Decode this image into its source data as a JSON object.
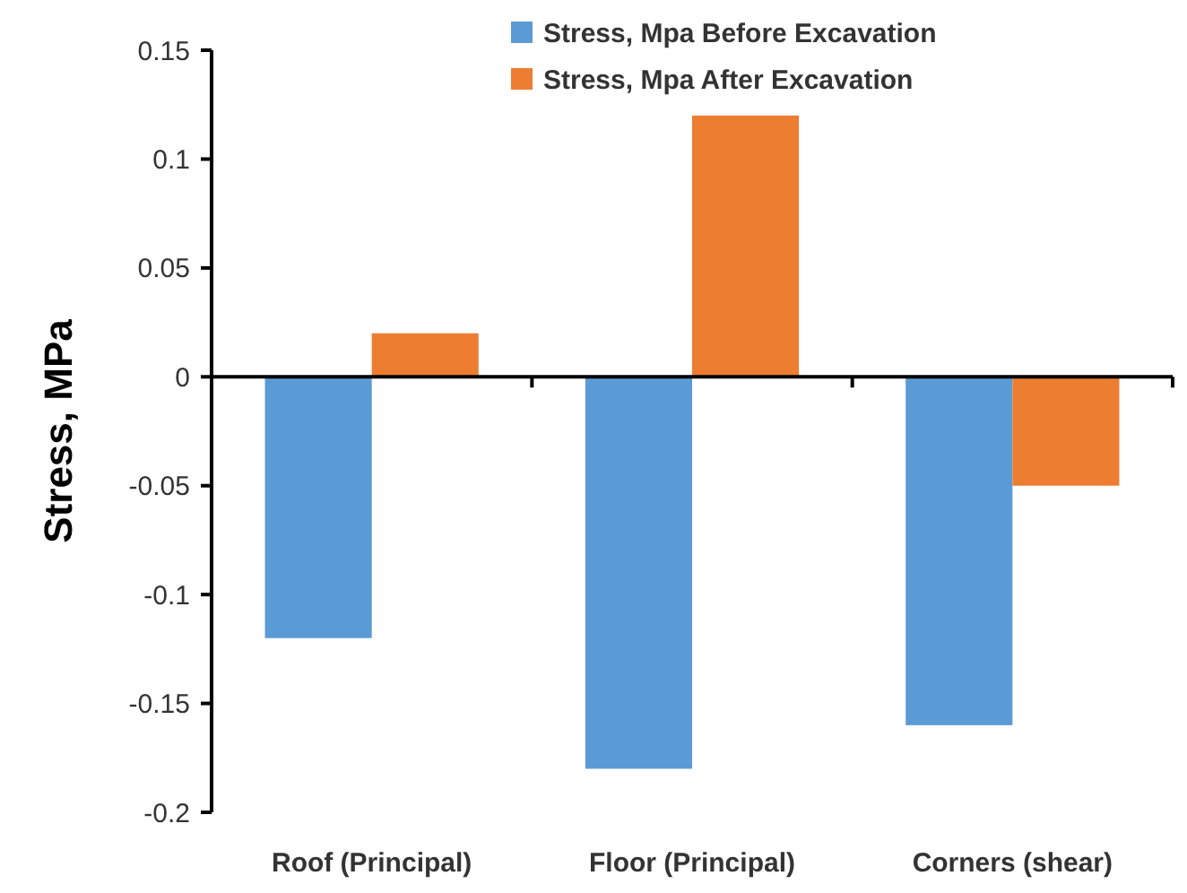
{
  "chart_data": {
    "type": "bar",
    "ylabel": "Stress, MPa",
    "categories": [
      "Roof (Principal)",
      "Floor (Principal)",
      "Corners (shear)"
    ],
    "series": [
      {
        "name": "Stress, Mpa Before Excavation",
        "color": "#5b9bd5",
        "values": [
          -0.12,
          -0.18,
          -0.16
        ]
      },
      {
        "name": "Stress, Mpa After Excavation",
        "color": "#ed7d31",
        "values": [
          0.02,
          0.12,
          -0.05
        ]
      }
    ],
    "ylim": [
      -0.2,
      0.15
    ],
    "yticks": [
      -0.2,
      -0.15,
      -0.1,
      -0.05,
      0,
      0.05,
      0.1,
      0.15
    ],
    "legend": "top"
  }
}
